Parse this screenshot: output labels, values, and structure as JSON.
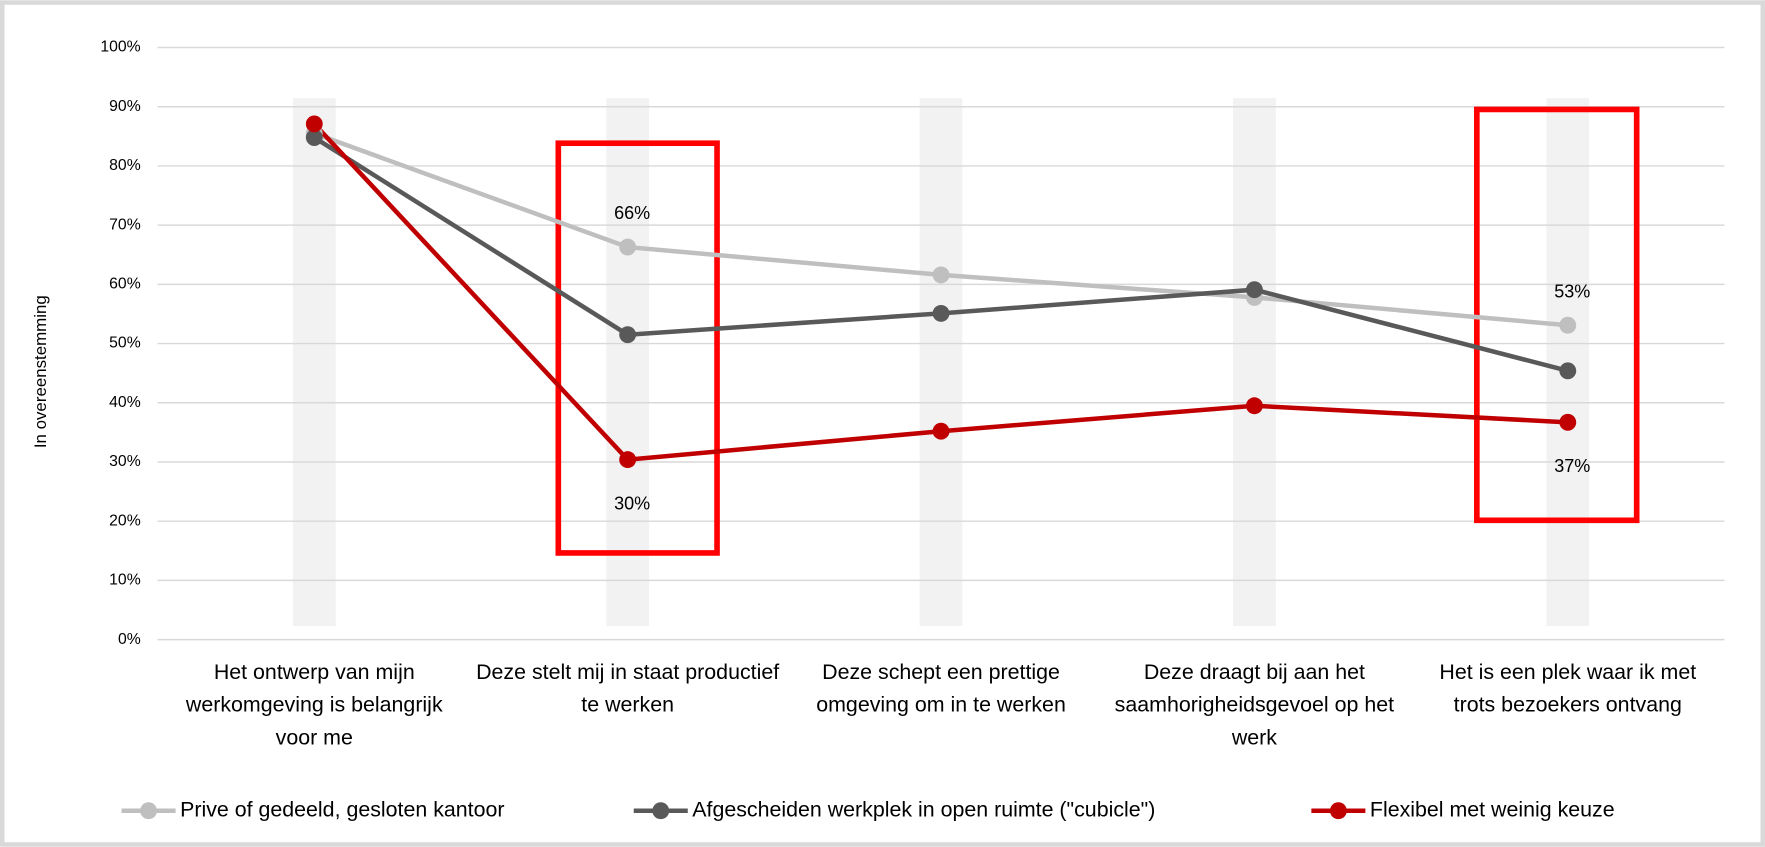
{
  "chart_data": {
    "type": "line",
    "y_label": "In overeenstemming",
    "categories": [
      "Het ontwerp van mijn werkomgeving is belangrijk voor me",
      "Deze stelt mij in staat productief te werken",
      "Deze schept een prettige omgeving om in te werken",
      "Deze draagt bij aan het saamhorigheidsgevoel op het werk",
      "Het is een plek waar ik met trots bezoekers ontvang"
    ],
    "series": [
      {
        "name": "Prive of gedeeld, gesloten kantoor",
        "color": "#bfbfbf",
        "values": [
          85.5,
          66.3,
          61.6,
          57.8,
          53.1
        ],
        "value_labels": [
          null,
          "66%",
          null,
          null,
          "53%"
        ]
      },
      {
        "name": "Afgescheiden werkplek in open ruimte (\"cubicle\")",
        "color": "#595959",
        "values": [
          84.8,
          51.5,
          55.1,
          59.1,
          45.4
        ]
      },
      {
        "name": "Flexibel met weinig keuze",
        "color": "#c00000",
        "values": [
          87.1,
          30.4,
          35.2,
          39.5,
          36.7
        ],
        "value_labels": [
          null,
          "30%",
          null,
          null,
          "37%"
        ]
      }
    ],
    "ylim": [
      0,
      100
    ],
    "yticks": [
      {
        "value": 0,
        "label": "0%"
      },
      {
        "value": 10,
        "label": "10%"
      },
      {
        "value": 20,
        "label": "20%"
      },
      {
        "value": 30,
        "label": "30%"
      },
      {
        "value": 40,
        "label": "40%"
      },
      {
        "value": 50,
        "label": "50%"
      },
      {
        "value": 60,
        "label": "60%"
      },
      {
        "value": 70,
        "label": "70%"
      },
      {
        "value": 80,
        "label": "80%"
      },
      {
        "value": 90,
        "label": "90%"
      },
      {
        "value": 100,
        "label": "100%"
      }
    ],
    "grid": true,
    "legend": "bottom"
  }
}
